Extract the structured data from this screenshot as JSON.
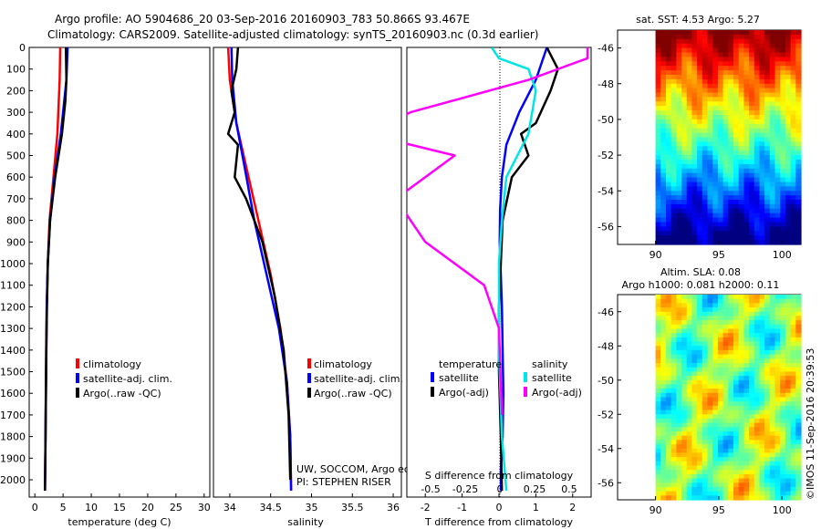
{
  "header": {
    "line1": "Argo profile: AO 5904686_20 03-Sep-2016 20160903_783 50.866S 93.467E",
    "line2": "Climatology: CARS2009. Satellite-adjusted climatology: synTS_20160903.nc (0.3d earlier)"
  },
  "credits": {
    "group": "UW, SOCCOM, Argo equivalent",
    "pi": "PI: STEPHEN RISER",
    "stamp": "©IMOS 11-Sep-2016 20:39:53"
  },
  "colors": {
    "climatology": "#ff0000",
    "satellite": "#0000ff",
    "argo": "#000000",
    "satellite_s": "#00e5e5",
    "argo_s": "#ff00ff"
  },
  "chart_data": [
    {
      "type": "line",
      "panel": "temperature",
      "xlabel": "temperature (deg C)",
      "ylabel": "",
      "xlim": [
        -1,
        31
      ],
      "ylim": [
        2080,
        0
      ],
      "xticks": [
        0,
        5,
        10,
        15,
        20,
        25,
        30
      ],
      "yticks": [
        0,
        100,
        200,
        300,
        400,
        500,
        600,
        700,
        800,
        900,
        1000,
        1100,
        1200,
        1300,
        1400,
        1500,
        1600,
        1700,
        1800,
        1900,
        2000
      ],
      "legend": [
        "climatology",
        "satellite-adj. clim.",
        "Argo(..raw -QC)"
      ],
      "legend_position": "lower-center",
      "series": [
        {
          "name": "climatology",
          "x": [
            4.5,
            4.4,
            4.0,
            3.3,
            2.6,
            2.3,
            2.1,
            2.0,
            1.9,
            1.8
          ],
          "y": [
            0,
            150,
            400,
            600,
            800,
            1000,
            1200,
            1500,
            1800,
            2050
          ]
        },
        {
          "name": "satellite-adj. clim.",
          "x": [
            5.8,
            5.6,
            4.6,
            3.5,
            2.7,
            2.3,
            2.1,
            2.0,
            1.9,
            1.8
          ],
          "y": [
            0,
            150,
            400,
            600,
            800,
            1000,
            1200,
            1500,
            1800,
            2050
          ]
        },
        {
          "name": "Argo(..raw -QC)",
          "x": [
            5.5,
            5.6,
            5.4,
            4.8,
            3.6,
            2.7,
            2.3,
            2.0,
            1.9,
            1.8
          ],
          "y": [
            0,
            150,
            250,
            400,
            600,
            800,
            1000,
            1400,
            1800,
            2050
          ]
        }
      ]
    },
    {
      "type": "line",
      "panel": "salinity",
      "xlabel": "salinity",
      "xlim": [
        33.8,
        36.1
      ],
      "ylim": [
        2080,
        0
      ],
      "xticks": [
        34,
        34.5,
        35,
        35.5,
        36
      ],
      "xticklabels": [
        "34",
        "34.5",
        "35",
        "35.5",
        "36"
      ],
      "legend": [
        "climatology",
        "satellite-adj. clim.",
        "Argo(..raw -QC)"
      ],
      "legend_position": "lower-right",
      "series": [
        {
          "name": "climatology",
          "x": [
            33.98,
            34.0,
            34.08,
            34.2,
            34.35,
            34.5,
            34.62,
            34.7,
            34.74,
            34.75
          ],
          "y": [
            0,
            150,
            350,
            550,
            800,
            1050,
            1300,
            1550,
            1800,
            2050
          ]
        },
        {
          "name": "satellite-adj. clim.",
          "x": [
            34.02,
            34.03,
            34.08,
            34.18,
            34.3,
            34.45,
            34.6,
            34.7,
            34.74,
            34.75
          ],
          "y": [
            0,
            150,
            350,
            550,
            800,
            1050,
            1300,
            1550,
            1800,
            2050
          ]
        },
        {
          "name": "Argo(..raw -QC)",
          "x": [
            34.1,
            34.08,
            34.02,
            34.06,
            33.98,
            34.1,
            34.06,
            34.2,
            34.4,
            34.55,
            34.66,
            34.72,
            34.74
          ],
          "y": [
            0,
            100,
            200,
            300,
            400,
            450,
            600,
            700,
            900,
            1150,
            1400,
            1700,
            2000
          ]
        }
      ]
    },
    {
      "type": "line",
      "panel": "difference",
      "xlabel": "T difference from climatology",
      "xlabel2": "S difference from climatology",
      "xlim": [
        -2.5,
        2.5
      ],
      "ylim": [
        2080,
        0
      ],
      "xticks": [
        -2,
        -1,
        0,
        1,
        2
      ],
      "xticks2": [
        -0.5,
        -0.25,
        0,
        0.25,
        0.5
      ],
      "xticks2labels": [
        "-0.5",
        "-0.25",
        "0",
        "0.25",
        "0.5"
      ],
      "legend": {
        "temperature_title": "temperature",
        "salinity_title": "salinity",
        "items": [
          "satellite",
          "Argo(-adj)",
          "satellite",
          "Argo(-adj)"
        ]
      },
      "series": [
        {
          "name": "satellite",
          "x": [
            1.3,
            1.0,
            0.55,
            0.2,
            0.08,
            0.03,
            0.02,
            0.05,
            0.08,
            0.1,
            0.12,
            0.1,
            0.05,
            0.05
          ],
          "y": [
            0,
            150,
            300,
            450,
            600,
            750,
            900,
            1050,
            1200,
            1400,
            1600,
            1800,
            1950,
            2050
          ]
        },
        {
          "name": "Argo(-adj)",
          "x": [
            1.3,
            1.6,
            1.4,
            1.0,
            0.6,
            0.8,
            0.35,
            0.1,
            0.05,
            0.0,
            0.0,
            0.05,
            0.08
          ],
          "y": [
            0,
            100,
            200,
            350,
            400,
            500,
            600,
            800,
            1000,
            1200,
            1500,
            1800,
            2050
          ]
        },
        {
          "name": "satellite",
          "x": [
            -0.05,
            0.0,
            0.2,
            0.25,
            0.2,
            0.05,
            0.02,
            0.0,
            0.0,
            0.02,
            0.05
          ],
          "y": [
            0,
            50,
            100,
            200,
            400,
            600,
            800,
            1000,
            1400,
            1800,
            2050
          ]
        },
        {
          "name": "Argo(-adj)",
          "x": [
            0.6,
            0.6,
            0.2,
            -0.6,
            -0.9,
            -0.3,
            -0.7,
            -0.5,
            -0.1,
            0.0,
            0.02
          ],
          "y": [
            0,
            50,
            150,
            300,
            400,
            500,
            700,
            900,
            1100,
            1300,
            1700
          ]
        }
      ]
    },
    {
      "type": "heatmap",
      "panel": "sst_map",
      "title": "sat. SST: 4.53 Argo: 5.27",
      "xlim": [
        87,
        101.5
      ],
      "ylim": [
        -57,
        -45
      ],
      "xticks": [
        90,
        95,
        100
      ],
      "yticks": [
        -46,
        -48,
        -50,
        -52,
        -54,
        -56
      ],
      "colormap": "jet"
    },
    {
      "type": "heatmap",
      "panel": "sla_map",
      "title": "Altim. SLA: 0.08",
      "subtitle": "Argo h1000: 0.081 h2000: 0.11",
      "xlim": [
        87,
        101.5
      ],
      "ylim": [
        -57,
        -45
      ],
      "xticks": [
        90,
        95,
        100
      ],
      "yticks": [
        -46,
        -48,
        -50,
        -52,
        -54,
        -56
      ],
      "colormap": "jet"
    }
  ]
}
